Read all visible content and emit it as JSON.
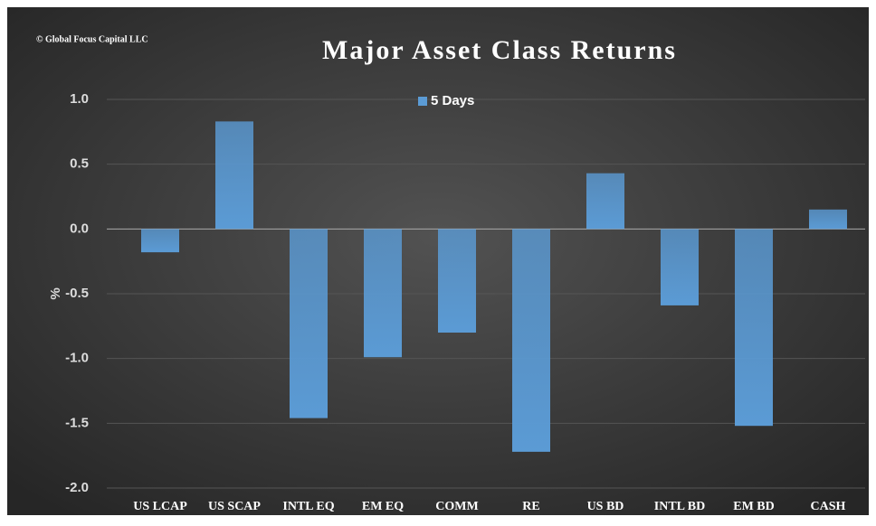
{
  "chart_data": {
    "type": "bar",
    "title": "Major Asset Class Returns",
    "copyright": "© Global Focus Capital LLC",
    "y_label": "%",
    "categories": [
      "US LCAP",
      "US SCAP",
      "INTL EQ",
      "EM EQ",
      "COMM",
      "RE",
      "US BD",
      "INTL BD",
      "EM BD",
      "CASH"
    ],
    "series": [
      {
        "name": "5 Days",
        "color": "#5b9bd5",
        "values": [
          -0.18,
          0.83,
          -1.46,
          -0.99,
          -0.8,
          -1.72,
          0.43,
          -0.59,
          -1.52,
          0.15
        ]
      }
    ],
    "ylim": [
      -2.0,
      1.0
    ],
    "yticks": [
      {
        "value": -2,
        "label": "-2.0"
      },
      {
        "value": -1.5,
        "label": "-1.5"
      },
      {
        "value": -1,
        "label": "-1.0"
      },
      {
        "value": -0.5,
        "label": "-0.5"
      },
      {
        "value": 0,
        "label": "0.0"
      },
      {
        "value": 0.5,
        "label": "0.5"
      },
      {
        "value": 1,
        "label": "1.0"
      }
    ],
    "grid": true,
    "legend": "top"
  }
}
